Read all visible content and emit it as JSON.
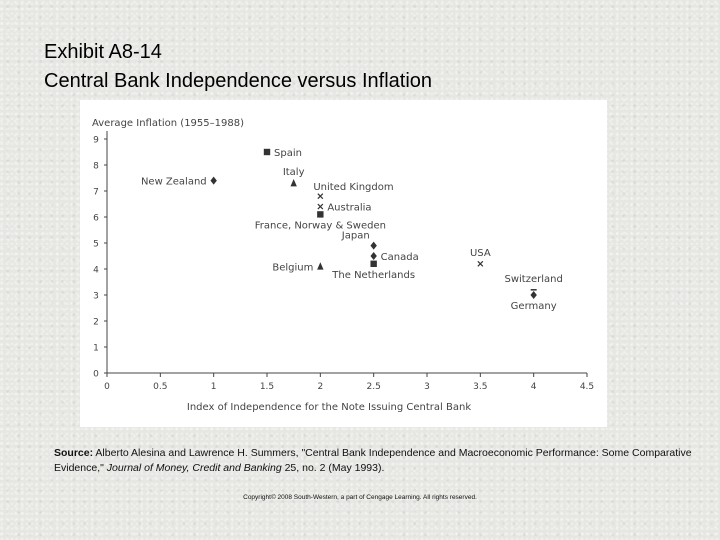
{
  "header": {
    "line1": "Exhibit A8-14",
    "line2": "Central Bank Independence versus Inflation"
  },
  "source": {
    "label": "Source:",
    "text_a": " Alberto Alesina and Lawrence H. Summers, \"Central Bank Independence and Macroeconomic Performance: Some Comparative Evidence,\" ",
    "journal": "Journal of Money, Credit and Banking",
    "text_b": " 25, no. 2 (May 1993)."
  },
  "copyright": "Copyright© 2008 South-Western, a part of Cengage Learning. All rights reserved.",
  "chart_data": {
    "type": "scatter",
    "title": "",
    "xlabel": "Index of Independence for the Note Issuing Central Bank",
    "ylabel": "Average Inflation (1955–1988)",
    "xlim": [
      0,
      4.5
    ],
    "ylim": [
      0,
      9
    ],
    "xticks": [
      {
        "v": 0,
        "label": "0"
      },
      {
        "v": 0.5,
        "label": "0.5"
      },
      {
        "v": 1,
        "label": "1"
      },
      {
        "v": 1.5,
        "label": "1.5"
      },
      {
        "v": 2,
        "label": "2"
      },
      {
        "v": 2.5,
        "label": "2.5"
      },
      {
        "v": 3,
        "label": "3"
      },
      {
        "v": 3.5,
        "label": "3.5"
      },
      {
        "v": 4,
        "label": "4"
      },
      {
        "v": 4.5,
        "label": "4.5"
      }
    ],
    "yticks": [
      {
        "v": 0,
        "label": "0"
      },
      {
        "v": 1,
        "label": "1"
      },
      {
        "v": 2,
        "label": "2"
      },
      {
        "v": 3,
        "label": "3"
      },
      {
        "v": 4,
        "label": "4"
      },
      {
        "v": 5,
        "label": "5"
      },
      {
        "v": 6,
        "label": "6"
      },
      {
        "v": 7,
        "label": "7"
      },
      {
        "v": 8,
        "label": "8"
      },
      {
        "v": 9,
        "label": "9"
      }
    ],
    "grid": false,
    "points": [
      {
        "label": "Spain",
        "x": 1.5,
        "y": 8.5,
        "marker": "square",
        "label_side": "right"
      },
      {
        "label": "New Zealand",
        "x": 1.0,
        "y": 7.4,
        "marker": "diamond",
        "label_side": "left"
      },
      {
        "label": "Italy",
        "x": 1.75,
        "y": 7.3,
        "marker": "triangle",
        "label_side": "above"
      },
      {
        "label": "United Kingdom",
        "x": 2.0,
        "y": 6.8,
        "marker": "x",
        "label_side": "above-right"
      },
      {
        "label": "Australia",
        "x": 2.0,
        "y": 6.4,
        "marker": "x",
        "label_side": "right"
      },
      {
        "label": "France, Norway & Sweden",
        "x": 2.0,
        "y": 6.1,
        "marker": "square",
        "label_side": "below"
      },
      {
        "label": "Japan",
        "x": 2.5,
        "y": 4.9,
        "marker": "diamond",
        "label_side": "above-left"
      },
      {
        "label": "Canada",
        "x": 2.5,
        "y": 4.5,
        "marker": "diamond",
        "label_side": "right"
      },
      {
        "label": "The Netherlands",
        "x": 2.5,
        "y": 4.2,
        "marker": "square",
        "label_side": "below"
      },
      {
        "label": "Belgium",
        "x": 2.0,
        "y": 4.1,
        "marker": "triangle",
        "label_side": "left"
      },
      {
        "label": "USA",
        "x": 3.5,
        "y": 4.2,
        "marker": "x",
        "label_side": "above"
      },
      {
        "label": "Switzerland",
        "x": 4.0,
        "y": 3.2,
        "marker": "dash",
        "label_side": "above"
      },
      {
        "label": "Germany",
        "x": 4.0,
        "y": 3.0,
        "marker": "diamond",
        "label_side": "below"
      }
    ]
  }
}
